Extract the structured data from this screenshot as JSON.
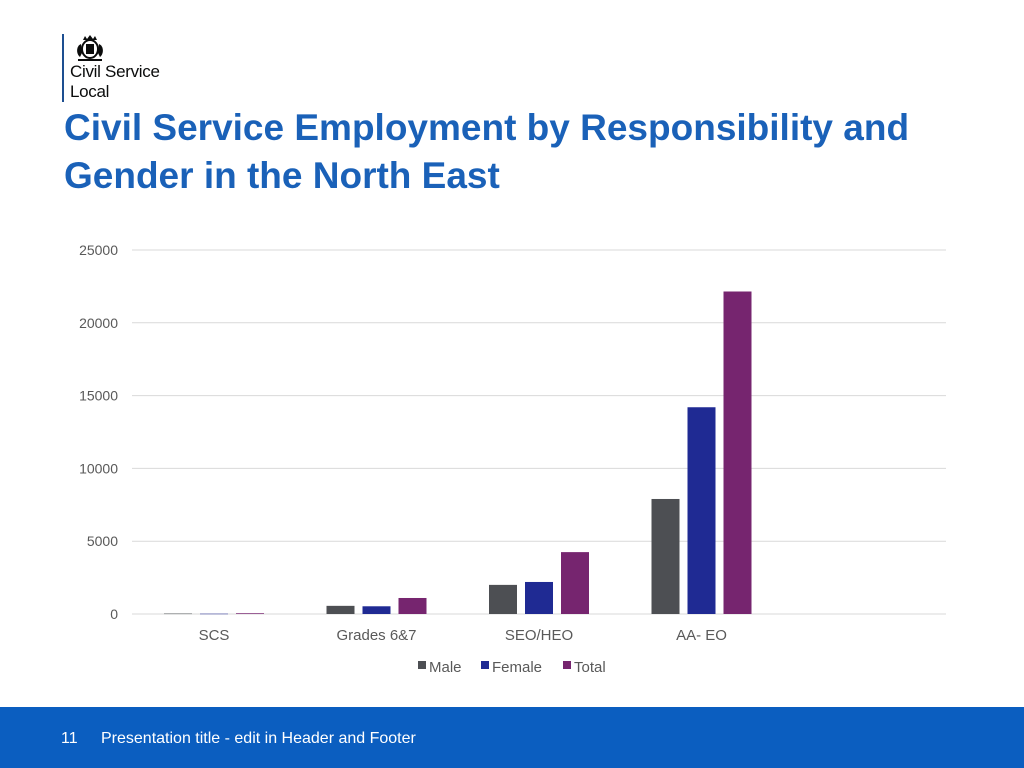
{
  "logo": {
    "line1": "Civil Service",
    "line2": "Local"
  },
  "title": "Civil Service Employment by Responsibility and Gender in the North East",
  "chart_data": {
    "type": "bar",
    "categories": [
      "SCS",
      "Grades 6&7",
      "SEO/HEO",
      "AA- EO"
    ],
    "series": [
      {
        "name": "Male",
        "color": "#4d4f53",
        "values": [
          30,
          560,
          2000,
          7900
        ]
      },
      {
        "name": "Female",
        "color": "#1f2a93",
        "values": [
          20,
          530,
          2200,
          14200
        ]
      },
      {
        "name": "Total",
        "color": "#76256f",
        "values": [
          50,
          1100,
          4250,
          22150
        ]
      }
    ],
    "yticks": [
      0,
      5000,
      10000,
      15000,
      20000,
      25000
    ],
    "ylim": [
      0,
      25000
    ],
    "title": "",
    "xlabel": "",
    "ylabel": "",
    "legend": "bottom"
  },
  "footer": {
    "page_number": "11",
    "text": "Presentation title - edit in Header and Footer"
  }
}
